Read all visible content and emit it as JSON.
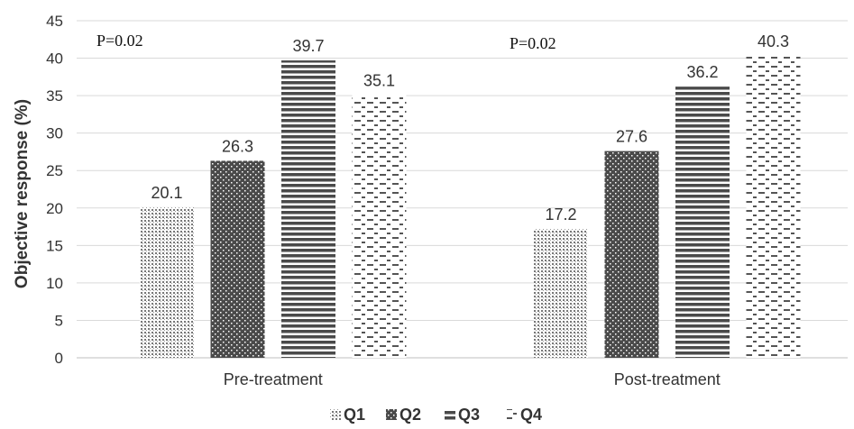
{
  "chart_data": {
    "type": "bar",
    "categories": [
      "Pre-treatment",
      "Post-treatment"
    ],
    "series": [
      {
        "name": "Q1",
        "values": [
          20.1,
          17.2
        ],
        "pattern": "dots"
      },
      {
        "name": "Q2",
        "values": [
          26.3,
          27.6
        ],
        "pattern": "dark-dots"
      },
      {
        "name": "Q3",
        "values": [
          39.7,
          36.2
        ],
        "pattern": "horizontal-stripes"
      },
      {
        "name": "Q4",
        "values": [
          35.1,
          40.3
        ],
        "pattern": "dashes"
      }
    ],
    "ylabel": "Objective response (%)",
    "ylim": [
      0,
      45
    ],
    "yticks": [
      0,
      5,
      10,
      15,
      20,
      25,
      30,
      35,
      40,
      45
    ],
    "grid": true,
    "legend_position": "bottom",
    "annotations": [
      "P=0.02",
      "P=0.02"
    ],
    "colors": {
      "bar": "#555555",
      "grid": "#d9d9d9",
      "text": "#333333"
    }
  }
}
